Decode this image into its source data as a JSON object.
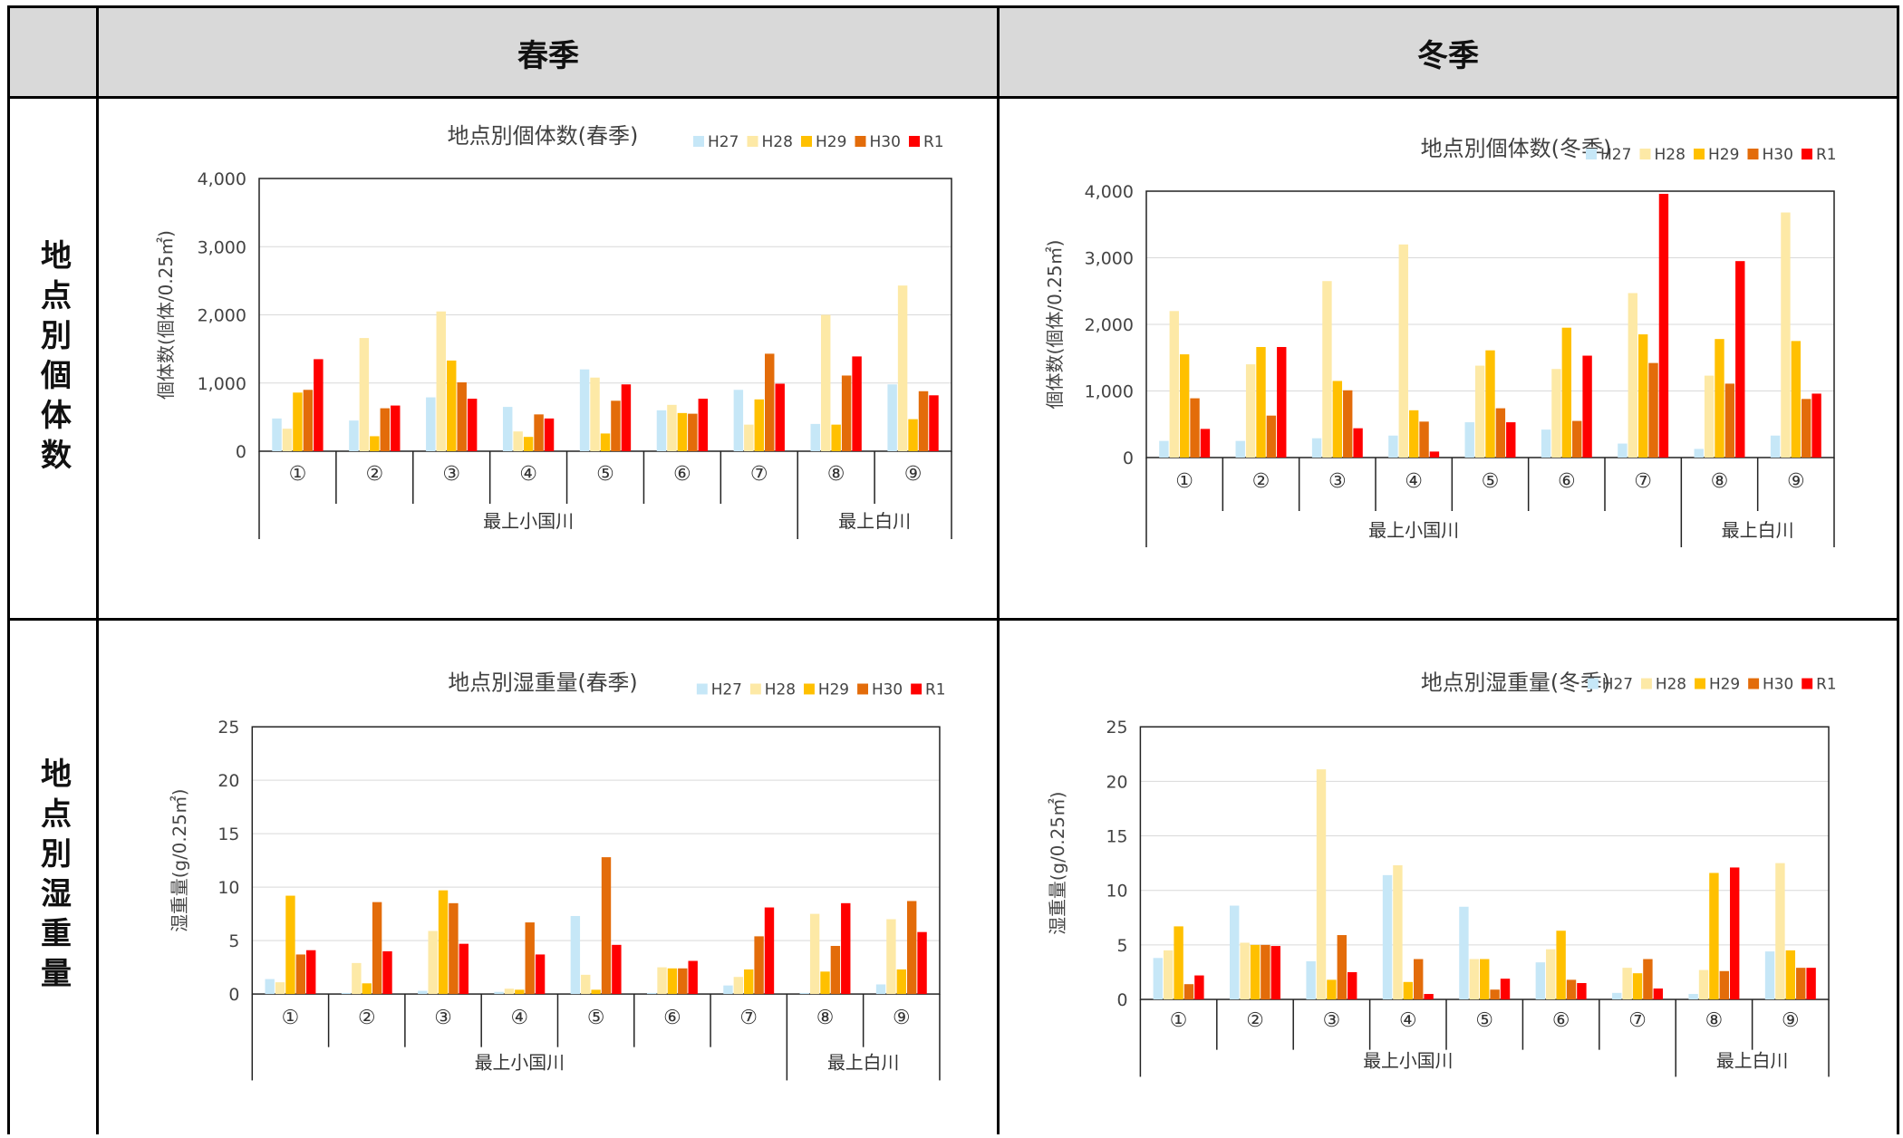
{
  "header": {
    "col1": "春季",
    "col2": "冬季"
  },
  "rows": {
    "row1": "地点別個体数",
    "row2": "地点別湿重量"
  },
  "colors": {
    "H27": "#c6e7f7",
    "H28": "#fde9a6",
    "H29": "#ffc000",
    "H30": "#e36c0a",
    "R1": "#ff0000"
  },
  "chart_data": [
    {
      "type": "bar",
      "title": "地点別個体数(春季)",
      "ylabel": "個体数(個体/0.25㎡)",
      "ylim": [
        0,
        4000
      ],
      "yticks": [
        0,
        1000,
        2000,
        3000,
        4000
      ],
      "ytick_labels": [
        "0",
        "1,000",
        "2,000",
        "3,000",
        "4,000"
      ],
      "categories": [
        "①",
        "②",
        "③",
        "④",
        "⑤",
        "⑥",
        "⑦",
        "⑧",
        "⑨"
      ],
      "groups": [
        {
          "label": "最上小国川",
          "count": 7
        },
        {
          "label": "最上白川",
          "count": 2
        }
      ],
      "legend": "top-right",
      "series": [
        {
          "name": "H27",
          "values": [
            480,
            450,
            790,
            650,
            1200,
            600,
            900,
            400,
            980
          ]
        },
        {
          "name": "H28",
          "values": [
            330,
            1660,
            2050,
            290,
            1080,
            680,
            390,
            2000,
            2430
          ]
        },
        {
          "name": "H29",
          "values": [
            860,
            220,
            1330,
            210,
            260,
            560,
            760,
            390,
            470
          ]
        },
        {
          "name": "H30",
          "values": [
            900,
            630,
            1010,
            540,
            740,
            550,
            1430,
            1110,
            880
          ]
        },
        {
          "name": "R1",
          "values": [
            1350,
            670,
            770,
            480,
            980,
            770,
            990,
            1390,
            820
          ]
        }
      ]
    },
    {
      "type": "bar",
      "title": "地点別個体数(冬季)",
      "ylabel": "個体数(個体/0.25㎡)",
      "ylim": [
        0,
        4000
      ],
      "yticks": [
        0,
        1000,
        2000,
        3000,
        4000
      ],
      "ytick_labels": [
        "0",
        "1,000",
        "2,000",
        "3,000",
        "4,000"
      ],
      "categories": [
        "①",
        "②",
        "③",
        "④",
        "⑤",
        "⑥",
        "⑦",
        "⑧",
        "⑨"
      ],
      "groups": [
        {
          "label": "最上小国川",
          "count": 7
        },
        {
          "label": "最上白川",
          "count": 2
        }
      ],
      "legend": "top-right",
      "series": [
        {
          "name": "H27",
          "values": [
            250,
            250,
            290,
            330,
            530,
            420,
            210,
            130,
            330
          ]
        },
        {
          "name": "H28",
          "values": [
            2200,
            1400,
            2650,
            3200,
            1380,
            1330,
            2470,
            1230,
            3680
          ]
        },
        {
          "name": "H29",
          "values": [
            1550,
            1660,
            1150,
            710,
            1610,
            1950,
            1850,
            1780,
            1750
          ]
        },
        {
          "name": "H30",
          "values": [
            890,
            630,
            1010,
            540,
            740,
            550,
            1420,
            1110,
            880
          ]
        },
        {
          "name": "R1",
          "values": [
            430,
            1660,
            440,
            90,
            530,
            1530,
            3960,
            2950,
            960
          ]
        }
      ]
    },
    {
      "type": "bar",
      "title": "地点別湿重量(春季)",
      "ylabel": "湿重量(g/0.25㎡)",
      "ylim": [
        0,
        25
      ],
      "yticks": [
        0,
        5,
        10,
        15,
        20,
        25
      ],
      "ytick_labels": [
        "0",
        "5",
        "10",
        "15",
        "20",
        "25"
      ],
      "categories": [
        "①",
        "②",
        "③",
        "④",
        "⑤",
        "⑥",
        "⑦",
        "⑧",
        "⑨"
      ],
      "groups": [
        {
          "label": "最上小国川",
          "count": 7
        },
        {
          "label": "最上白川",
          "count": 2
        }
      ],
      "legend": "top-right",
      "series": [
        {
          "name": "H27",
          "values": [
            1.4,
            0.1,
            0.3,
            0.2,
            7.3,
            0.1,
            0.8,
            0.1,
            0.9
          ]
        },
        {
          "name": "H28",
          "values": [
            1.1,
            2.9,
            5.9,
            0.5,
            1.8,
            2.5,
            1.6,
            7.5,
            7.0
          ]
        },
        {
          "name": "H29",
          "values": [
            9.2,
            1.0,
            9.7,
            0.4,
            0.4,
            2.4,
            2.3,
            2.1,
            2.3
          ]
        },
        {
          "name": "H30",
          "values": [
            3.7,
            8.6,
            8.5,
            6.7,
            12.8,
            2.4,
            5.4,
            4.5,
            8.7
          ]
        },
        {
          "name": "R1",
          "values": [
            4.1,
            4.0,
            4.7,
            3.7,
            4.6,
            3.1,
            8.1,
            8.5,
            5.8
          ]
        }
      ]
    },
    {
      "type": "bar",
      "title": "地点別湿重量(冬季)",
      "ylabel": "湿重量(g/0.25㎡)",
      "ylim": [
        0,
        25
      ],
      "yticks": [
        0,
        5,
        10,
        15,
        20,
        25
      ],
      "ytick_labels": [
        "0",
        "5",
        "10",
        "15",
        "20",
        "25"
      ],
      "categories": [
        "①",
        "②",
        "③",
        "④",
        "⑤",
        "⑥",
        "⑦",
        "⑧",
        "⑨"
      ],
      "groups": [
        {
          "label": "最上小国川",
          "count": 7
        },
        {
          "label": "最上白川",
          "count": 2
        }
      ],
      "legend": "top-right",
      "series": [
        {
          "name": "H27",
          "values": [
            3.8,
            8.6,
            3.5,
            11.4,
            8.5,
            3.4,
            0.6,
            0.5,
            4.4
          ]
        },
        {
          "name": "H28",
          "values": [
            4.5,
            5.2,
            21.1,
            12.3,
            3.7,
            4.6,
            2.9,
            2.7,
            12.5
          ]
        },
        {
          "name": "H29",
          "values": [
            6.7,
            5.0,
            1.8,
            1.6,
            3.7,
            6.3,
            2.4,
            11.6,
            4.5
          ]
        },
        {
          "name": "H30",
          "values": [
            1.4,
            5.0,
            5.9,
            3.7,
            0.9,
            1.8,
            3.7,
            2.6,
            2.9
          ]
        },
        {
          "name": "R1",
          "values": [
            2.2,
            4.9,
            2.5,
            0.5,
            1.9,
            1.5,
            1.0,
            12.1,
            2.9
          ]
        }
      ]
    }
  ]
}
